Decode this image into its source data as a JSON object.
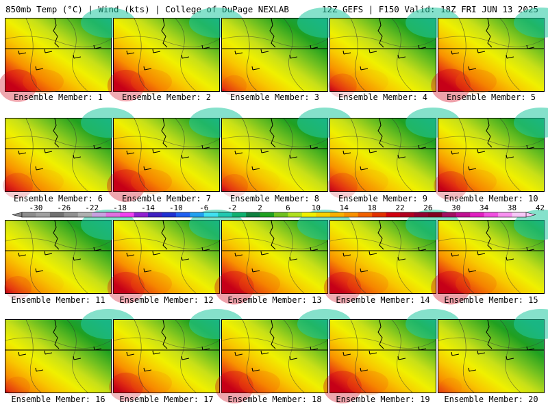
{
  "header": {
    "left_title": "850mb Temp (°C) | Wind (kts) | College of DuPage NEXLAB",
    "right_title": "12Z GEFS | F150 Valid: 18Z FRI JUN 13 2025"
  },
  "member_label_prefix": "Ensemble Member: ",
  "members": [
    {
      "label": "Ensemble Member: 1",
      "warmth": 0.7
    },
    {
      "label": "Ensemble Member: 2",
      "warmth": 0.68
    },
    {
      "label": "Ensemble Member: 3",
      "warmth": 0.45
    },
    {
      "label": "Ensemble Member: 4",
      "warmth": 0.52
    },
    {
      "label": "Ensemble Member: 5",
      "warmth": 0.72
    },
    {
      "label": "Ensemble Member: 6",
      "warmth": 0.55
    },
    {
      "label": "Ensemble Member: 7",
      "warmth": 0.7
    },
    {
      "label": "Ensemble Member: 8",
      "warmth": 0.5
    },
    {
      "label": "Ensemble Member: 9",
      "warmth": 0.55
    },
    {
      "label": "Ensemble Member: 10",
      "warmth": 0.62
    },
    {
      "label": "Ensemble Member: 11",
      "warmth": 0.5
    },
    {
      "label": "Ensemble Member: 12",
      "warmth": 0.68
    },
    {
      "label": "Ensemble Member: 13",
      "warmth": 0.72
    },
    {
      "label": "Ensemble Member: 14",
      "warmth": 0.68
    },
    {
      "label": "Ensemble Member: 15",
      "warmth": 0.72
    },
    {
      "label": "Ensemble Member: 16",
      "warmth": 0.45
    },
    {
      "label": "Ensemble Member: 17",
      "warmth": 0.62
    },
    {
      "label": "Ensemble Member: 18",
      "warmth": 0.7
    },
    {
      "label": "Ensemble Member: 19",
      "warmth": 0.7
    },
    {
      "label": "Ensemble Member: 20",
      "warmth": 0.4
    }
  ],
  "colorbar": {
    "tick_labels": [
      "-30",
      "-26",
      "-22",
      "-18",
      "-14",
      "-10",
      "-6",
      "-2",
      "2",
      "6",
      "10",
      "14",
      "18",
      "22",
      "26",
      "30",
      "34",
      "38",
      "42"
    ],
    "colors": [
      "#8c8c8c",
      "#a0a0a0",
      "#707070",
      "#909090",
      "#b0b0b0",
      "#c8a0e0",
      "#e070e0",
      "#f040f0",
      "#9020d0",
      "#4020c0",
      "#2030d0",
      "#2060f0",
      "#20a0f0",
      "#40e0f0",
      "#20c8b0",
      "#10b070",
      "#108040",
      "#20a020",
      "#70c020",
      "#b0e020",
      "#f0f000",
      "#f8d000",
      "#f8b000",
      "#f89000",
      "#f06000",
      "#e03000",
      "#d00010",
      "#b00020",
      "#900030",
      "#800020",
      "#a01060",
      "#c01090",
      "#e020c0",
      "#f050e0",
      "#f890f0",
      "#f8c8f8"
    ]
  }
}
